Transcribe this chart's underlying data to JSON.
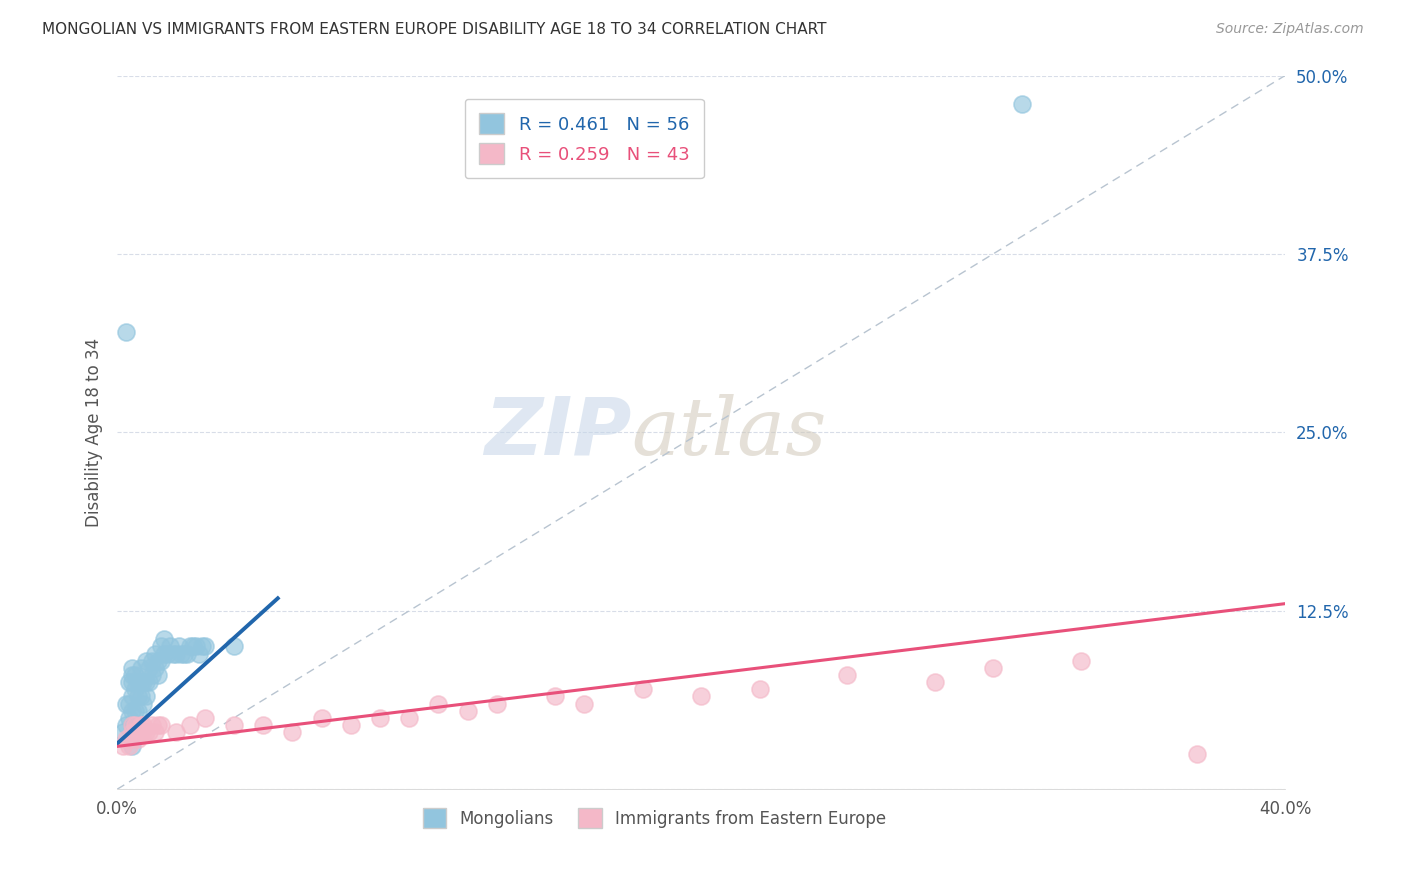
{
  "title": "MONGOLIAN VS IMMIGRANTS FROM EASTERN EUROPE DISABILITY AGE 18 TO 34 CORRELATION CHART",
  "source": "Source: ZipAtlas.com",
  "ylabel": "Disability Age 18 to 34",
  "xlim": [
    0.0,
    0.4
  ],
  "ylim": [
    0.0,
    0.5
  ],
  "xtick_vals": [
    0.0,
    0.1,
    0.2,
    0.3,
    0.4
  ],
  "xtick_labels": [
    "0.0%",
    "",
    "",
    "",
    "40.0%"
  ],
  "ytick_vals": [
    0.0,
    0.125,
    0.25,
    0.375,
    0.5
  ],
  "ytick_labels": [
    "",
    "12.5%",
    "25.0%",
    "37.5%",
    "50.0%"
  ],
  "mongolian_R": 0.461,
  "mongolian_N": 56,
  "eastern_europe_R": 0.259,
  "eastern_europe_N": 43,
  "blue_color": "#92c5de",
  "pink_color": "#f4b8c8",
  "blue_line_color": "#2166ac",
  "pink_line_color": "#e8507a",
  "diagonal_color": "#b8c4d0",
  "mongolian_x": [
    0.002,
    0.003,
    0.003,
    0.004,
    0.004,
    0.004,
    0.005,
    0.005,
    0.005,
    0.005,
    0.005,
    0.005,
    0.005,
    0.006,
    0.006,
    0.006,
    0.007,
    0.007,
    0.007,
    0.008,
    0.008,
    0.008,
    0.009,
    0.009,
    0.01,
    0.01,
    0.01,
    0.011,
    0.011,
    0.012,
    0.012,
    0.013,
    0.013,
    0.014,
    0.014,
    0.015,
    0.015,
    0.016,
    0.016,
    0.017,
    0.018,
    0.019,
    0.02,
    0.021,
    0.022,
    0.023,
    0.024,
    0.025,
    0.026,
    0.027,
    0.028,
    0.029,
    0.03,
    0.04,
    0.003,
    0.31
  ],
  "mongolian_y": [
    0.04,
    0.045,
    0.06,
    0.05,
    0.06,
    0.075,
    0.03,
    0.045,
    0.055,
    0.065,
    0.075,
    0.08,
    0.085,
    0.055,
    0.07,
    0.08,
    0.055,
    0.065,
    0.075,
    0.065,
    0.075,
    0.085,
    0.06,
    0.075,
    0.065,
    0.075,
    0.09,
    0.075,
    0.085,
    0.08,
    0.09,
    0.085,
    0.095,
    0.08,
    0.09,
    0.09,
    0.1,
    0.095,
    0.105,
    0.095,
    0.1,
    0.095,
    0.095,
    0.1,
    0.095,
    0.095,
    0.095,
    0.1,
    0.1,
    0.1,
    0.095,
    0.1,
    0.1,
    0.1,
    0.32,
    0.48
  ],
  "eastern_europe_x": [
    0.002,
    0.003,
    0.004,
    0.005,
    0.005,
    0.005,
    0.006,
    0.006,
    0.007,
    0.007,
    0.008,
    0.008,
    0.009,
    0.009,
    0.01,
    0.011,
    0.012,
    0.013,
    0.014,
    0.015,
    0.02,
    0.025,
    0.03,
    0.04,
    0.05,
    0.06,
    0.07,
    0.08,
    0.09,
    0.1,
    0.11,
    0.12,
    0.13,
    0.15,
    0.16,
    0.18,
    0.2,
    0.22,
    0.25,
    0.28,
    0.3,
    0.33,
    0.37
  ],
  "eastern_europe_y": [
    0.03,
    0.035,
    0.03,
    0.035,
    0.04,
    0.045,
    0.04,
    0.045,
    0.035,
    0.04,
    0.04,
    0.045,
    0.04,
    0.045,
    0.04,
    0.04,
    0.045,
    0.04,
    0.045,
    0.045,
    0.04,
    0.045,
    0.05,
    0.045,
    0.045,
    0.04,
    0.05,
    0.045,
    0.05,
    0.05,
    0.06,
    0.055,
    0.06,
    0.065,
    0.06,
    0.07,
    0.065,
    0.07,
    0.08,
    0.075,
    0.085,
    0.09,
    0.025
  ],
  "blue_line_x": [
    0.0,
    0.055
  ],
  "blue_line_y_intercept": 0.032,
  "blue_line_slope": 1.85,
  "pink_line_x": [
    0.0,
    0.4
  ],
  "pink_line_y_start": 0.03,
  "pink_line_y_end": 0.13,
  "watermark_zip": "ZIP",
  "watermark_atlas": "atlas",
  "background_color": "#ffffff",
  "grid_color": "#d8dde8"
}
